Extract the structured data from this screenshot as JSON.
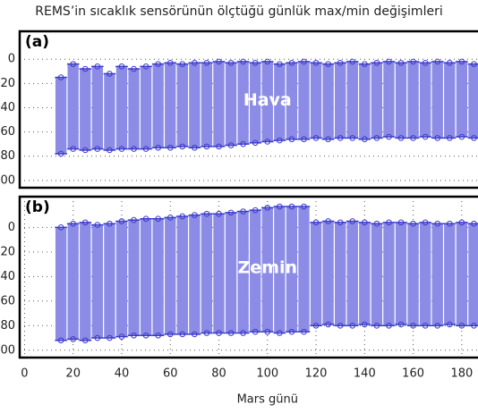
{
  "chart_data": [
    {
      "type": "range",
      "title": "REMS’in sıcaklık sensörünün ölçtüğü günlük max/min değişimleri",
      "label": "(a)",
      "annotation": "Hava",
      "color": "#8c8ce6",
      "edge_color": "#3a3acb",
      "x": [
        15,
        20,
        25,
        30,
        35,
        40,
        45,
        50,
        55,
        60,
        65,
        70,
        75,
        80,
        85,
        90,
        95,
        100,
        105,
        110,
        115,
        120,
        125,
        130,
        135,
        140,
        145,
        150,
        155,
        160,
        165,
        170,
        175,
        180,
        185
      ],
      "max": [
        -15,
        -4,
        -8,
        -6,
        -12,
        -6,
        -8,
        -6,
        -4,
        -3,
        -4,
        -3,
        -3,
        -2,
        -3,
        -2,
        -3,
        -2,
        -4,
        -3,
        -2,
        -3,
        -4,
        -3,
        -2,
        -4,
        -3,
        -2,
        -3,
        -2,
        -3,
        -2,
        -3,
        -2,
        -4
      ],
      "min": [
        -78,
        -74,
        -75,
        -74,
        -75,
        -74,
        -74,
        -74,
        -73,
        -73,
        -72,
        -73,
        -72,
        -72,
        -71,
        -70,
        -69,
        -68,
        -67,
        -66,
        -66,
        -65,
        -66,
        -65,
        -65,
        -66,
        -65,
        -64,
        -65,
        -65,
        -64,
        -65,
        -65,
        -64,
        -65
      ],
      "xlim": [
        -2,
        190
      ],
      "ylim": [
        -106,
        23
      ],
      "yticks": [
        0,
        {
          "value": -20,
          "label": "20"
        },
        {
          "value": -40,
          "label": "40"
        },
        {
          "value": -60,
          "label": "60"
        },
        {
          "value": -80,
          "label": "80"
        },
        {
          "value": -100,
          "label": "00"
        }
      ],
      "grid": true
    },
    {
      "type": "range",
      "label": "(b)",
      "annotation": "Zemin",
      "color": "#8c8ce6",
      "edge_color": "#3a3acb",
      "x": [
        15,
        20,
        25,
        30,
        35,
        40,
        45,
        50,
        55,
        60,
        65,
        70,
        75,
        80,
        85,
        90,
        95,
        100,
        105,
        110,
        115,
        120,
        125,
        130,
        135,
        140,
        145,
        150,
        155,
        160,
        165,
        170,
        175,
        180,
        185
      ],
      "max": [
        0,
        3,
        4,
        2,
        3,
        5,
        6,
        7,
        7,
        8,
        9,
        10,
        11,
        11,
        12,
        13,
        14,
        16,
        17,
        17,
        17,
        4,
        5,
        4,
        5,
        4,
        3,
        4,
        4,
        3,
        4,
        3,
        3,
        4,
        3
      ],
      "min": [
        -92,
        -91,
        -92,
        -90,
        -90,
        -89,
        -88,
        -88,
        -88,
        -87,
        -87,
        -87,
        -86,
        -86,
        -86,
        -86,
        -85,
        -85,
        -86,
        -85,
        -85,
        -80,
        -79,
        -80,
        -80,
        -79,
        -80,
        -80,
        -79,
        -80,
        -80,
        -80,
        -79,
        -80,
        -80
      ],
      "xlim": [
        -2,
        190
      ],
      "ylim": [
        -106,
        25
      ],
      "yticks": [
        0,
        {
          "value": -20,
          "label": "20"
        },
        {
          "value": -40,
          "label": "40"
        },
        {
          "value": -60,
          "label": "60"
        },
        {
          "value": -80,
          "label": "80"
        },
        {
          "value": -100,
          "label": "00"
        }
      ],
      "xticks": [
        0,
        20,
        40,
        60,
        80,
        100,
        120,
        140,
        160,
        180
      ],
      "xlabel": "Mars günü",
      "grid": true
    }
  ]
}
